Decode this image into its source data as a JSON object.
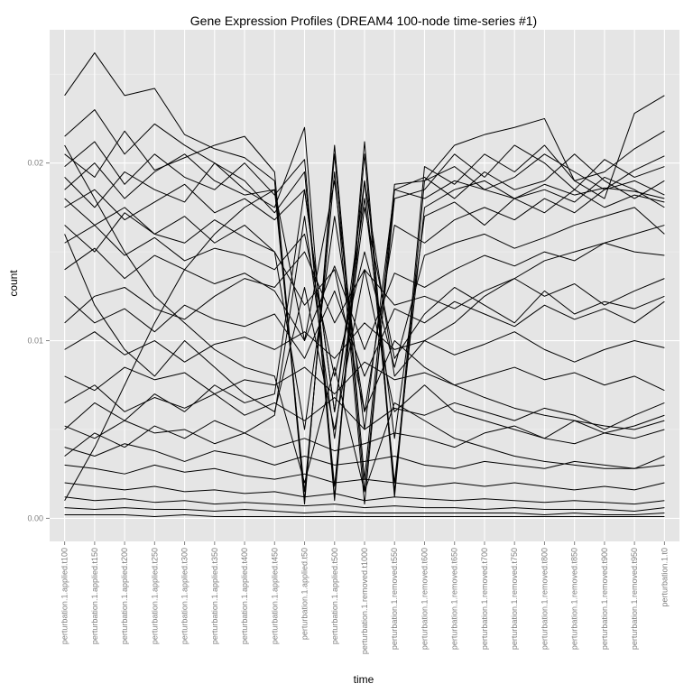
{
  "chart_data": {
    "type": "line",
    "title": "Gene Expression Profiles (DREAM4 100-node time-series #1)",
    "xlabel": "time",
    "ylabel": "count",
    "categories": [
      "perturbation.1.applied.t100",
      "perturbation.1.applied.t150",
      "perturbation.1.applied.t200",
      "perturbation.1.applied.t250",
      "perturbation.1.applied.t300",
      "perturbation.1.applied.t350",
      "perturbation.1.applied.t400",
      "perturbation.1.applied.t450",
      "perturbation.1.applied.t50",
      "perturbation.1.applied.t500",
      "perturbation.1.removed.t1000",
      "perturbation.1.removed.t550",
      "perturbation.1.removed.t600",
      "perturbation.1.removed.t650",
      "perturbation.1.removed.t700",
      "perturbation.1.removed.t750",
      "perturbation.1.removed.t800",
      "perturbation.1.removed.t850",
      "perturbation.1.removed.t900",
      "perturbation.1.removed.t950",
      "perturbation.1.t0"
    ],
    "yticks": [
      "0.00",
      "0.01",
      "0.02"
    ],
    "ylim": [
      -0.0013,
      0.0275
    ],
    "grid": true,
    "legend": "none",
    "series": [
      {
        "values": [
          0.0238,
          0.0262,
          0.0238,
          0.0242,
          0.0216,
          0.0208,
          0.0203,
          0.019,
          0.0008,
          0.021,
          0.0022,
          0.0188,
          0.019,
          0.021,
          0.0216,
          0.022,
          0.0225,
          0.019,
          0.018,
          0.0228,
          0.0238
        ]
      },
      {
        "values": [
          0.0215,
          0.023,
          0.0205,
          0.0222,
          0.021,
          0.02,
          0.0185,
          0.0175,
          0.022,
          0.0012,
          0.0212,
          0.0015,
          0.0198,
          0.0188,
          0.0205,
          0.0195,
          0.021,
          0.019,
          0.0195,
          0.0208,
          0.0218
        ]
      },
      {
        "values": [
          0.0205,
          0.0192,
          0.0218,
          0.0196,
          0.0203,
          0.021,
          0.0215,
          0.0195,
          0.001,
          0.0205,
          0.0015,
          0.018,
          0.0185,
          0.0205,
          0.0192,
          0.021,
          0.02,
          0.0185,
          0.0202,
          0.0192,
          0.0198
        ]
      },
      {
        "values": [
          0.0198,
          0.0212,
          0.0188,
          0.0205,
          0.0192,
          0.0185,
          0.02,
          0.0182,
          0.0202,
          0.001,
          0.0205,
          0.0012,
          0.019,
          0.0198,
          0.0185,
          0.0192,
          0.0205,
          0.0195,
          0.0185,
          0.0196,
          0.0204
        ]
      },
      {
        "values": [
          0.0185,
          0.02,
          0.018,
          0.0195,
          0.0205,
          0.019,
          0.0182,
          0.0185,
          0.0015,
          0.0195,
          0.0008,
          0.0185,
          0.0192,
          0.018,
          0.0195,
          0.0185,
          0.019,
          0.0205,
          0.019,
          0.018,
          0.019
        ]
      },
      {
        "values": [
          0.0192,
          0.0175,
          0.0195,
          0.0185,
          0.0178,
          0.02,
          0.019,
          0.0172,
          0.0195,
          0.0018,
          0.019,
          0.002,
          0.0175,
          0.0185,
          0.019,
          0.018,
          0.0185,
          0.0178,
          0.0192,
          0.0185,
          0.0175
        ]
      },
      {
        "values": [
          0.0175,
          0.0185,
          0.0168,
          0.0178,
          0.0188,
          0.0172,
          0.018,
          0.0168,
          0.0185,
          0.006,
          0.018,
          0.0045,
          0.017,
          0.0178,
          0.0165,
          0.018,
          0.0172,
          0.0185,
          0.0175,
          0.0182,
          0.0178
        ]
      },
      {
        "values": [
          0.0165,
          0.015,
          0.0172,
          0.016,
          0.0155,
          0.0168,
          0.0158,
          0.015,
          0.005,
          0.017,
          0.006,
          0.0165,
          0.0155,
          0.0168,
          0.0175,
          0.0168,
          0.018,
          0.0172,
          0.0185,
          0.019,
          0.0182
        ]
      },
      {
        "values": [
          0.0155,
          0.0165,
          0.0148,
          0.0158,
          0.0145,
          0.0152,
          0.0148,
          0.014,
          0.016,
          0.008,
          0.015,
          0.0085,
          0.0148,
          0.0155,
          0.016,
          0.0152,
          0.0158,
          0.0165,
          0.017,
          0.0175,
          0.016
        ]
      },
      {
        "values": [
          0.014,
          0.0152,
          0.0135,
          0.0148,
          0.014,
          0.0132,
          0.0138,
          0.0128,
          0.01,
          0.0142,
          0.0095,
          0.0138,
          0.013,
          0.014,
          0.0148,
          0.0142,
          0.015,
          0.0145,
          0.0155,
          0.015,
          0.0148
        ]
      },
      {
        "values": [
          0.011,
          0.0125,
          0.013,
          0.0118,
          0.0112,
          0.0125,
          0.0135,
          0.013,
          0.015,
          0.011,
          0.014,
          0.012,
          0.0125,
          0.0118,
          0.0128,
          0.0135,
          0.0125,
          0.0132,
          0.012,
          0.0128,
          0.0135
        ]
      },
      {
        "values": [
          0.0125,
          0.011,
          0.0118,
          0.0105,
          0.012,
          0.0112,
          0.0108,
          0.0115,
          0.009,
          0.0128,
          0.008,
          0.0118,
          0.011,
          0.0122,
          0.0115,
          0.0108,
          0.012,
          0.0112,
          0.0118,
          0.011,
          0.0122
        ]
      },
      {
        "values": [
          0.0095,
          0.0105,
          0.0092,
          0.01,
          0.0088,
          0.0098,
          0.0102,
          0.0095,
          0.0105,
          0.009,
          0.011,
          0.0095,
          0.01,
          0.0092,
          0.0098,
          0.0105,
          0.0095,
          0.0088,
          0.0095,
          0.01,
          0.0096
        ]
      },
      {
        "values": [
          0.008,
          0.0072,
          0.0085,
          0.0078,
          0.0082,
          0.007,
          0.0078,
          0.0075,
          0.0085,
          0.007,
          0.0088,
          0.0078,
          0.0082,
          0.0075,
          0.008,
          0.0085,
          0.0078,
          0.0082,
          0.0075,
          0.008,
          0.0072
        ]
      },
      {
        "values": [
          0.0065,
          0.0075,
          0.006,
          0.0068,
          0.0062,
          0.007,
          0.0058,
          0.0065,
          0.0055,
          0.0068,
          0.005,
          0.0062,
          0.0058,
          0.0065,
          0.006,
          0.0055,
          0.0062,
          0.0058,
          0.005,
          0.0058,
          0.0065
        ]
      },
      {
        "values": [
          0.0052,
          0.0045,
          0.0055,
          0.0048,
          0.005,
          0.0042,
          0.0048,
          0.004,
          0.0045,
          0.0038,
          0.0042,
          0.0048,
          0.0045,
          0.004,
          0.0048,
          0.0052,
          0.0045,
          0.0042,
          0.0048,
          0.0045,
          0.005
        ]
      },
      {
        "values": [
          0.004,
          0.0035,
          0.0042,
          0.0038,
          0.0032,
          0.0038,
          0.0035,
          0.003,
          0.0035,
          0.003,
          0.0032,
          0.0035,
          0.003,
          0.0028,
          0.0032,
          0.003,
          0.0028,
          0.0032,
          0.003,
          0.0028,
          0.0035
        ]
      },
      {
        "values": [
          0.003,
          0.0028,
          0.0025,
          0.003,
          0.0026,
          0.0028,
          0.0024,
          0.0022,
          0.0025,
          0.002,
          0.0022,
          0.002,
          0.0018,
          0.002,
          0.0018,
          0.002,
          0.0018,
          0.0016,
          0.0018,
          0.0016,
          0.002
        ]
      },
      {
        "values": [
          0.002,
          0.0018,
          0.0016,
          0.0018,
          0.0015,
          0.0016,
          0.0014,
          0.0015,
          0.0012,
          0.0014,
          0.001,
          0.0012,
          0.0011,
          0.001,
          0.0011,
          0.001,
          0.0009,
          0.001,
          0.0009,
          0.0008,
          0.001
        ]
      },
      {
        "values": [
          0.0012,
          0.001,
          0.0011,
          0.0009,
          0.001,
          0.0008,
          0.0009,
          0.0008,
          0.0007,
          0.0008,
          0.0006,
          0.0007,
          0.0006,
          0.0006,
          0.0005,
          0.0006,
          0.0005,
          0.0005,
          0.0005,
          0.0004,
          0.0006
        ]
      },
      {
        "values": [
          0.0006,
          0.0005,
          0.0006,
          0.0005,
          0.0005,
          0.0004,
          0.0005,
          0.0004,
          0.0003,
          0.0004,
          0.0003,
          0.0003,
          0.0003,
          0.0003,
          0.0003,
          0.0003,
          0.0002,
          0.0003,
          0.0002,
          0.0002,
          0.0003
        ]
      },
      {
        "values": [
          0.0002,
          0.0002,
          0.0002,
          0.0001,
          0.0002,
          0.0001,
          0.0001,
          0.0001,
          0.0001,
          0.0001,
          0.0001,
          0.0001,
          0.0001,
          0.0001,
          0.0001,
          0.0001,
          0.0001,
          0.0001,
          0.0001,
          0.0001,
          0.0001
        ]
      },
      {
        "values": [
          0.016,
          0.012,
          0.0095,
          0.008,
          0.01,
          0.0085,
          0.007,
          0.006,
          0.013,
          0.005,
          0.014,
          0.006,
          0.0075,
          0.006,
          0.0055,
          0.005,
          0.0045,
          0.0055,
          0.0048,
          0.0052,
          0.0058
        ]
      },
      {
        "values": [
          0.001,
          0.004,
          0.0075,
          0.011,
          0.014,
          0.016,
          0.0175,
          0.0185,
          0.01,
          0.019,
          0.005,
          0.0185,
          0.018,
          0.019,
          0.0185,
          0.018,
          0.0188,
          0.0182,
          0.0186,
          0.0184,
          0.018
        ]
      },
      {
        "values": [
          0.021,
          0.018,
          0.015,
          0.0125,
          0.011,
          0.0095,
          0.0085,
          0.008,
          0.002,
          0.0085,
          0.0015,
          0.0065,
          0.0055,
          0.0045,
          0.004,
          0.0035,
          0.0032,
          0.003,
          0.0028,
          0.0028,
          0.003
        ]
      },
      {
        "values": [
          0.005,
          0.0065,
          0.0055,
          0.007,
          0.006,
          0.0075,
          0.0065,
          0.007,
          0.0185,
          0.006,
          0.019,
          0.008,
          0.01,
          0.011,
          0.0125,
          0.0135,
          0.0145,
          0.015,
          0.0155,
          0.016,
          0.0165
        ]
      },
      {
        "values": [
          0.018,
          0.0165,
          0.0175,
          0.016,
          0.017,
          0.0155,
          0.0165,
          0.015,
          0.012,
          0.014,
          0.006,
          0.01,
          0.0085,
          0.0075,
          0.0068,
          0.0062,
          0.0058,
          0.0055,
          0.0052,
          0.005,
          0.0055
        ]
      },
      {
        "values": [
          0.0035,
          0.0048,
          0.004,
          0.0052,
          0.0045,
          0.0055,
          0.0048,
          0.0058,
          0.017,
          0.0045,
          0.0175,
          0.009,
          0.0115,
          0.013,
          0.012,
          0.011,
          0.0128,
          0.0115,
          0.0122,
          0.0118,
          0.0125
        ]
      }
    ]
  }
}
